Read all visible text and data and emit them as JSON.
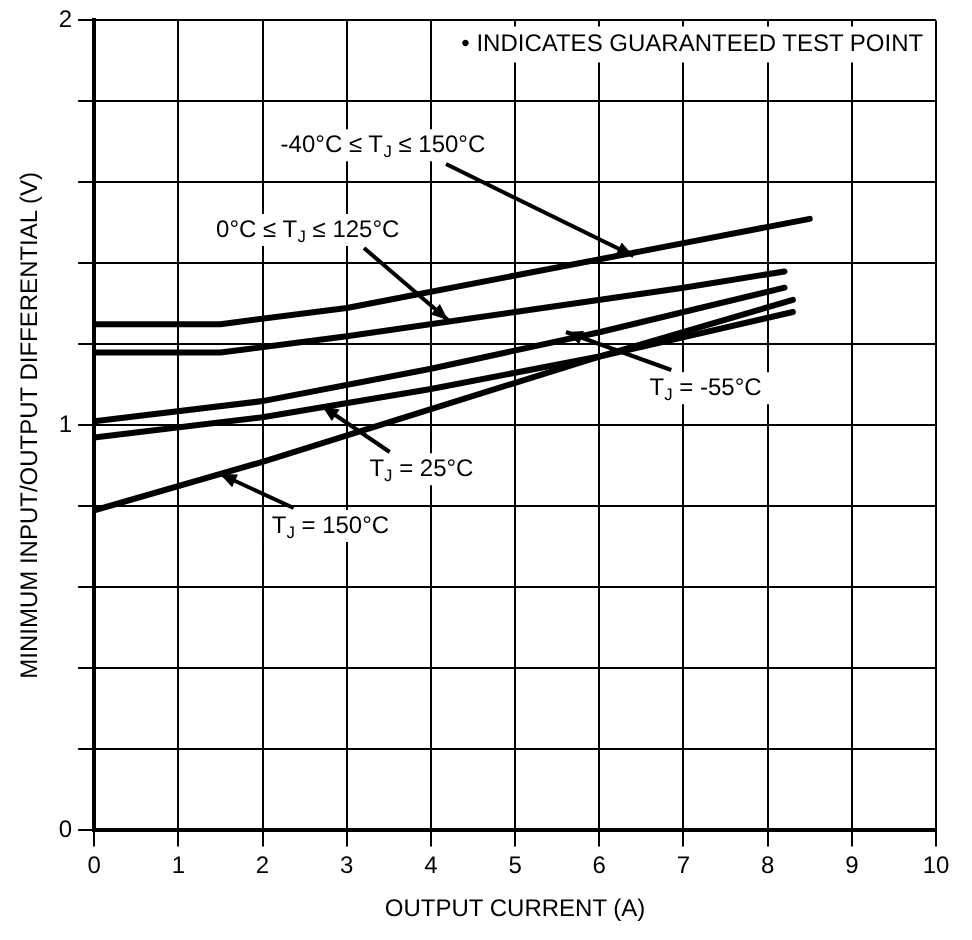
{
  "chart_data": {
    "type": "line",
    "xlabel": "OUTPUT CURRENT (A)",
    "ylabel": "MINIMUM INPUT/OUTPUT DIFFERENTIAL (V)",
    "xlim": [
      0,
      10
    ],
    "xticks": [
      0,
      1,
      2,
      3,
      4,
      5,
      6,
      7,
      8,
      9,
      10
    ],
    "ylim": [
      0,
      2
    ],
    "yticks": [
      0,
      {
        "value": 0.2,
        "label": null
      },
      {
        "value": 0.4,
        "label": null
      },
      {
        "value": 0.6,
        "label": null
      },
      {
        "value": 0.8,
        "label": null
      },
      1,
      {
        "value": 1.2,
        "label": null
      },
      {
        "value": 1.4,
        "label": null
      },
      {
        "value": 1.6,
        "label": null
      },
      {
        "value": 1.8,
        "label": null
      },
      2
    ],
    "grid": true,
    "legend": false,
    "marker": "none",
    "line_style": "solid",
    "series": [
      {
        "color": "#000000",
        "x": [
          0,
          1.5,
          3,
          5,
          7,
          8.5
        ],
        "values": [
          1.25,
          1.25,
          1.29,
          1.37,
          1.45,
          1.51
        ]
      },
      {
        "color": "#000000",
        "x": [
          0,
          1.5,
          3,
          5,
          7,
          8.2
        ],
        "values": [
          1.18,
          1.18,
          1.22,
          1.28,
          1.34,
          1.38
        ]
      },
      {
        "color": "#000000",
        "x": [
          0,
          2,
          4,
          6,
          8.2
        ],
        "values": [
          1.01,
          1.06,
          1.14,
          1.23,
          1.34
        ]
      },
      {
        "color": "#000000",
        "x": [
          0,
          2,
          4,
          6,
          8.3
        ],
        "values": [
          0.97,
          1.02,
          1.09,
          1.17,
          1.28
        ]
      },
      {
        "color": "#000000",
        "x": [
          0,
          2,
          4,
          6,
          8.3
        ],
        "values": [
          0.79,
          0.91,
          1.04,
          1.17,
          1.31
        ]
      }
    ],
    "annotations": [
      "• INDICATES GUARANTEED TEST POINT",
      {
        "text": "-40°C ≤ T$_{J}$ ≤ 150°C",
        "x": 6.4,
        "y": 1.42
      },
      {
        "text": "0°C ≤ T$_{J}$ ≤ 125°C",
        "x": 4.2,
        "y": 1.26
      },
      {
        "text": "T$_{J}$ = -55°C",
        "x": 5.6,
        "y": 1.23
      },
      {
        "text": "T$_{J}$ = 25°C",
        "x": 2.7,
        "y": 1.05
      },
      {
        "text": "T$_{J}$ = 150°C",
        "x": 1.5,
        "y": 0.88
      }
    ]
  }
}
